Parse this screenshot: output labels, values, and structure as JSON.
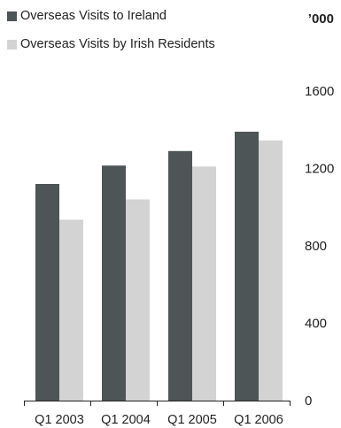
{
  "chart_data": {
    "type": "bar",
    "unit": "’000",
    "categories": [
      "Q1 2003",
      "Q1 2004",
      "Q1 2005",
      "Q1 2006"
    ],
    "series": [
      {
        "name": "Overseas Visits to Ireland",
        "color": "#4d5556",
        "values": [
          1120,
          1215,
          1290,
          1390
        ]
      },
      {
        "name": "Overseas Visits by Irish Residents",
        "color": "#d3d3d3",
        "values": [
          935,
          1040,
          1210,
          1345
        ]
      }
    ],
    "yticks": [
      "0",
      "400",
      "800",
      "1200",
      "1600"
    ],
    "ylim": [
      0,
      1600
    ],
    "legend": "top-left",
    "grid": false
  }
}
